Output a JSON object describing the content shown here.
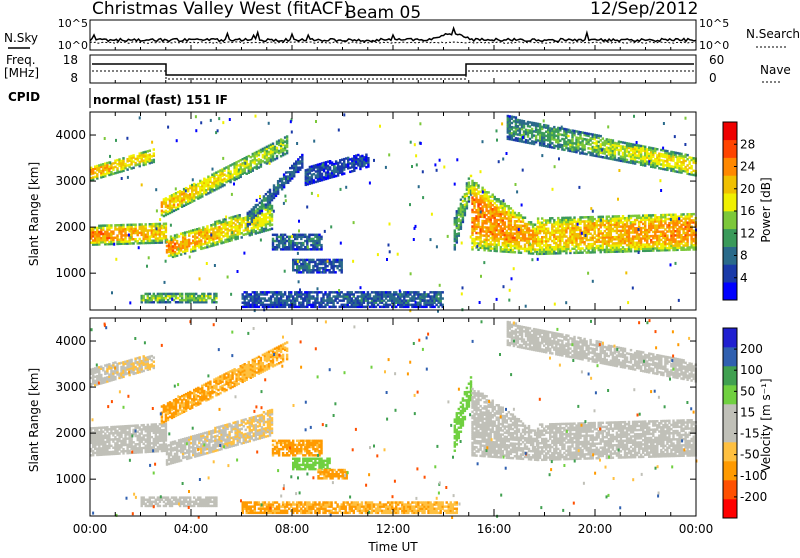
{
  "header": {
    "station": "Christmas Valley West (fitACF)",
    "beam": "Beam 05",
    "date": "12/Sep/2012"
  },
  "strips": {
    "nsky_label": "N.Sky",
    "nsky_ticks": [
      "10^5",
      "10^0"
    ],
    "nsearch_label": "N.Search",
    "nsearch_ticks": [
      "10^5",
      "10^0"
    ],
    "freq_label": "Freq.",
    "freq_unit": "[MHz]",
    "freq_ticks": [
      "18",
      "8"
    ],
    "nave_label": "Nave",
    "nave_ticks": [
      "60",
      "0"
    ],
    "cpid_label": "CPID",
    "cpid_value": "normal (fast) 151 IF"
  },
  "colors": {
    "power": [
      "#0000ff",
      "#1a3aa8",
      "#2a6a8a",
      "#3a9a5a",
      "#7cc83a",
      "#f0f000",
      "#f0c000",
      "#ff8800",
      "#ff4400",
      "#ee0000"
    ],
    "velocity": [
      "#ff0000",
      "#ff5000",
      "#ff9a00",
      "#ffc040",
      "#c0c0b8",
      "#c0c0b8",
      "#70d040",
      "#40a050",
      "#3060b0",
      "#2020d0"
    ]
  },
  "chart_data": [
    {
      "type": "heatmap",
      "name": "power",
      "ylabel": "Slant Range [km]",
      "colorbar_label": "Power [dB]",
      "colorbar_ticks": [
        "28",
        "24",
        "20",
        "16",
        "12",
        "8",
        "4"
      ],
      "yticks": [
        "4000",
        "3000",
        "2000",
        "1000"
      ],
      "ylim": [
        200,
        4500
      ],
      "xlim": [
        0,
        24
      ],
      "cmin": 0,
      "cmax": 32,
      "bands": [
        {
          "x": [
            0,
            3
          ],
          "r0": [
            1600,
            1650
          ],
          "r1": [
            2000,
            2100
          ],
          "p0": 24,
          "p1": 20
        },
        {
          "x": [
            3,
            7.2
          ],
          "r0": [
            1300,
            1950
          ],
          "r1": [
            1750,
            2500
          ],
          "p0": 24,
          "p1": 16
        },
        {
          "x": [
            0,
            2.5
          ],
          "r0": [
            3000,
            3400
          ],
          "r1": [
            3300,
            3700
          ],
          "p0": 22,
          "p1": 18
        },
        {
          "x": [
            2.8,
            7.8
          ],
          "r0": [
            2200,
            3600
          ],
          "r1": [
            2600,
            4000
          ],
          "p0": 22,
          "p1": 14
        },
        {
          "x": [
            6.2,
            8.4
          ],
          "r0": [
            2000,
            3300
          ],
          "r1": [
            2300,
            3600
          ],
          "p0": 10,
          "p1": 6
        },
        {
          "x": [
            7.2,
            9.2
          ],
          "r0": [
            1500,
            1500
          ],
          "r1": [
            1850,
            1850
          ],
          "p0": 8,
          "p1": 8
        },
        {
          "x": [
            8,
            10
          ],
          "r0": [
            1000,
            1000
          ],
          "r1": [
            1300,
            1300
          ],
          "p0": 8,
          "p1": 6
        },
        {
          "x": [
            8.5,
            11
          ],
          "r0": [
            2900,
            3300
          ],
          "r1": [
            3300,
            3600
          ],
          "p0": 6,
          "p1": 5
        },
        {
          "x": [
            2,
            5
          ],
          "r0": [
            350,
            350
          ],
          "r1": [
            550,
            550
          ],
          "p0": 14,
          "p1": 14
        },
        {
          "x": [
            6,
            14
          ],
          "r0": [
            250,
            250
          ],
          "r1": [
            600,
            600
          ],
          "p0": 6,
          "p1": 8
        },
        {
          "x": [
            14.4,
            15.1
          ],
          "r0": [
            1500,
            2800
          ],
          "r1": [
            2200,
            3300
          ],
          "p0": 12,
          "p1": 16
        },
        {
          "x": [
            15.1,
            17.7
          ],
          "r0": [
            1500,
            1400
          ],
          "r1": [
            3000,
            2000
          ],
          "p0": 24,
          "p1": 22
        },
        {
          "x": [
            17.7,
            24
          ],
          "r0": [
            1400,
            1500
          ],
          "r1": [
            2200,
            2300
          ],
          "p0": 20,
          "p1": 24
        },
        {
          "x": [
            16.5,
            24
          ],
          "r0": [
            3900,
            3100
          ],
          "r1": [
            4400,
            3500
          ],
          "p0": 10,
          "p1": 20
        }
      ]
    },
    {
      "type": "heatmap",
      "name": "velocity",
      "ylabel": "Slant Range [km]",
      "colorbar_label": "Velocity [m s⁻¹]",
      "colorbar_ticks": [
        "200",
        "100",
        "50",
        "15",
        "-15",
        "-50",
        "-100",
        "-200"
      ],
      "yticks": [
        "4000",
        "3000",
        "2000",
        "1000"
      ],
      "xticks": [
        "00:00",
        "04:00",
        "08:00",
        "12:00",
        "16:00",
        "20:00",
        "00:00"
      ],
      "xlabel": "Time UT",
      "ylim": [
        200,
        4500
      ],
      "xlim": [
        0,
        24
      ],
      "bands": [
        {
          "x": [
            0,
            3
          ],
          "r0": [
            1500,
            1600
          ],
          "r1": [
            2100,
            2200
          ],
          "v0": 0,
          "v1": 0
        },
        {
          "x": [
            3,
            7.2
          ],
          "r0": [
            1300,
            1950
          ],
          "r1": [
            1750,
            2500
          ],
          "v0": 0,
          "v1": -20
        },
        {
          "x": [
            0,
            2.5
          ],
          "r0": [
            3000,
            3400
          ],
          "r1": [
            3400,
            3700
          ],
          "v0": 0,
          "v1": -20
        },
        {
          "x": [
            2.8,
            7.8
          ],
          "r0": [
            2200,
            3600
          ],
          "r1": [
            2600,
            4000
          ],
          "v0": -60,
          "v1": -40
        },
        {
          "x": [
            7.2,
            9.2
          ],
          "r0": [
            1500,
            1500
          ],
          "r1": [
            1850,
            1850
          ],
          "v0": -60,
          "v1": -60
        },
        {
          "x": [
            8,
            9.5
          ],
          "r0": [
            1200,
            1200
          ],
          "r1": [
            1450,
            1450
          ],
          "v0": 30,
          "v1": 30
        },
        {
          "x": [
            9,
            10.2
          ],
          "r0": [
            1000,
            1000
          ],
          "r1": [
            1200,
            1200
          ],
          "v0": -60,
          "v1": -60
        },
        {
          "x": [
            2,
            5
          ],
          "r0": [
            400,
            400
          ],
          "r1": [
            600,
            600
          ],
          "v0": 0,
          "v1": 0
        },
        {
          "x": [
            6,
            14.5
          ],
          "r0": [
            250,
            250
          ],
          "r1": [
            500,
            500
          ],
          "v0": -60,
          "v1": -40
        },
        {
          "x": [
            14.4,
            15.1
          ],
          "r0": [
            1600,
            2800
          ],
          "r1": [
            2300,
            3300
          ],
          "v0": 30,
          "v1": 30
        },
        {
          "x": [
            15.1,
            17.7
          ],
          "r0": [
            1500,
            1400
          ],
          "r1": [
            3000,
            2000
          ],
          "v0": 0,
          "v1": 0
        },
        {
          "x": [
            17.7,
            24
          ],
          "r0": [
            1400,
            1500
          ],
          "r1": [
            2200,
            2300
          ],
          "v0": 0,
          "v1": 0
        },
        {
          "x": [
            16.5,
            24
          ],
          "r0": [
            3900,
            3100
          ],
          "r1": [
            4400,
            3500
          ],
          "v0": 0,
          "v1": 0
        }
      ]
    }
  ]
}
